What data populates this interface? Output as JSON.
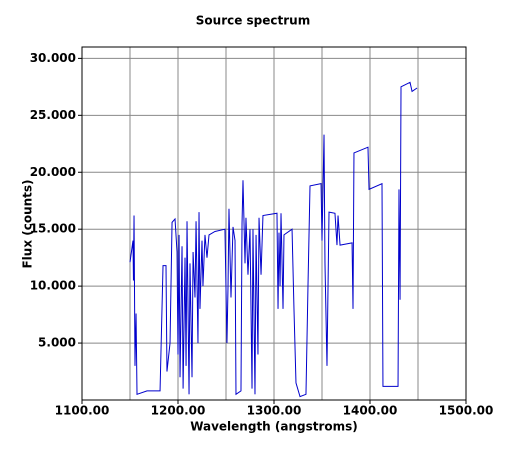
{
  "chart_data": {
    "type": "line",
    "title": "Source spectrum",
    "x_label": "Wavelength (angstroms)",
    "y_label": "Flux (counts)",
    "xlim": [
      1100,
      1500
    ],
    "ylim": [
      0,
      31
    ],
    "xticks": [
      {
        "value": 1100,
        "label": "1100.00"
      },
      {
        "value": 1200,
        "label": "1200.00"
      },
      {
        "value": 1300,
        "label": "1300.00"
      },
      {
        "value": 1400,
        "label": "1400.00"
      },
      {
        "value": 1500,
        "label": "1500.00"
      }
    ],
    "xgrid": [
      1150,
      1200,
      1250,
      1300,
      1350,
      1400,
      1450
    ],
    "yticks": [
      {
        "value": 5,
        "label": "5.000"
      },
      {
        "value": 10,
        "label": "10.000"
      },
      {
        "value": 15,
        "label": "15.000"
      },
      {
        "value": 20,
        "label": "20.000"
      },
      {
        "value": 25,
        "label": "25.000"
      },
      {
        "value": 30,
        "label": "30.000"
      }
    ],
    "grid": true,
    "series": [
      {
        "color": "#0000cc",
        "x": [
          1150.0,
          1153.1,
          1153.6,
          1154.2,
          1155.2,
          1156.3,
          1157.3,
          1167.7,
          1181.3,
          1184.4,
          1187.5,
          1188.5,
          1191.7,
          1193.8,
          1196.9,
          1199.0,
          1200.0,
          1201.1,
          1202.1,
          1204.2,
          1205.3,
          1207.3,
          1208.4,
          1209.4,
          1211.5,
          1212.5,
          1214.6,
          1215.7,
          1217.7,
          1218.8,
          1220.8,
          1221.9,
          1222.9,
          1225.0,
          1226.0,
          1228.1,
          1230.2,
          1232.3,
          1238.5,
          1248.9,
          1251.0,
          1252.1,
          1253.1,
          1255.2,
          1257.3,
          1259.4,
          1260.4,
          1265.6,
          1266.7,
          1267.7,
          1269.8,
          1270.8,
          1272.9,
          1275.0,
          1277.1,
          1278.1,
          1280.2,
          1281.3,
          1283.3,
          1284.4,
          1286.5,
          1288.5,
          1303.1,
          1304.2,
          1305.2,
          1306.3,
          1307.3,
          1309.4,
          1310.4,
          1318.8,
          1320.8,
          1322.9,
          1327.1,
          1333.3,
          1335.4,
          1337.5,
          1349.0,
          1350.0,
          1352.1,
          1353.1,
          1355.2,
          1357.3,
          1363.5,
          1365.6,
          1366.7,
          1368.8,
          1381.3,
          1382.3,
          1383.3,
          1397.9,
          1399.0,
          1412.5,
          1413.5,
          1429.2,
          1430.2,
          1431.3,
          1432.3,
          1441.7,
          1443.8,
          1449.0
        ],
        "values": [
          12.1,
          14.0,
          10.5,
          16.2,
          3.0,
          7.6,
          0.5,
          0.8,
          0.8,
          11.8,
          11.8,
          2.5,
          5.0,
          15.6,
          15.9,
          13.0,
          4.0,
          14.5,
          2.0,
          13.5,
          1.0,
          12.5,
          3.0,
          15.7,
          0.5,
          12.0,
          2.0,
          13.0,
          9.0,
          15.7,
          5.0,
          16.5,
          8.0,
          14.0,
          10.0,
          14.5,
          12.5,
          14.5,
          14.8,
          15.0,
          5.0,
          10.0,
          16.8,
          9.0,
          15.2,
          14.0,
          0.5,
          0.8,
          15.5,
          19.3,
          12.0,
          16.0,
          11.0,
          15.0,
          1.0,
          15.0,
          0.5,
          14.5,
          4.0,
          16.0,
          11.0,
          16.2,
          16.4,
          8.0,
          14.7,
          10.0,
          16.4,
          8.0,
          14.5,
          15.0,
          8.0,
          1.5,
          0.3,
          0.5,
          10.0,
          18.8,
          19.0,
          14.0,
          23.3,
          12.0,
          3.0,
          16.5,
          16.4,
          13.6,
          16.2,
          13.6,
          13.8,
          8.0,
          21.7,
          22.2,
          18.5,
          19.0,
          1.2,
          1.2,
          18.5,
          8.8,
          27.5,
          27.9,
          27.1,
          27.4
        ]
      }
    ]
  }
}
